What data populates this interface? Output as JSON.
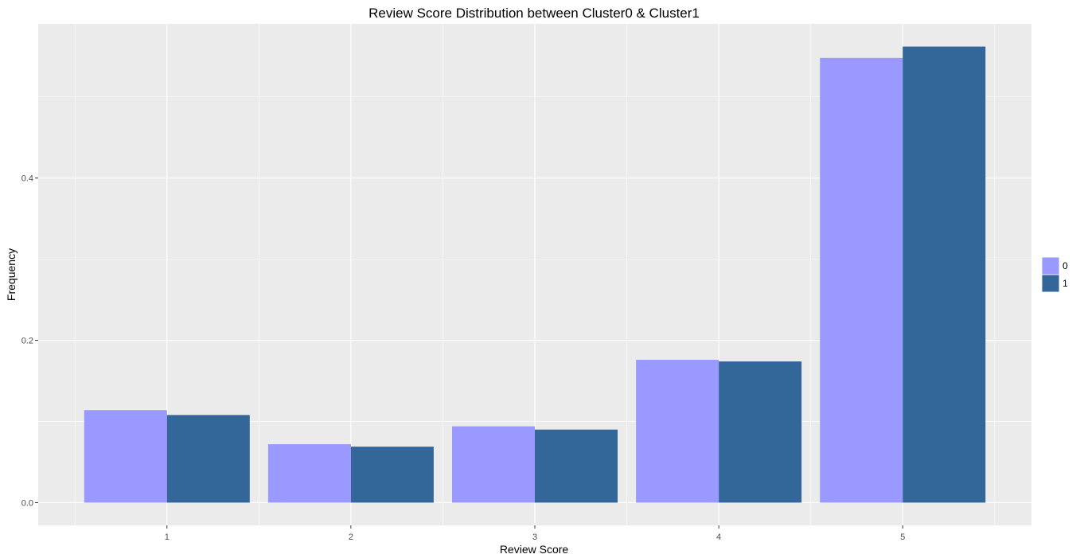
{
  "chart_data": {
    "type": "bar",
    "title": "Review Score Distribution between Cluster0 & Cluster1",
    "xlabel": "Review Score",
    "ylabel": "Frequency",
    "categories": [
      "1",
      "2",
      "3",
      "4",
      "5"
    ],
    "series": [
      {
        "name": "0",
        "color": "#9999ff",
        "values": [
          0.114,
          0.072,
          0.094,
          0.176,
          0.548
        ]
      },
      {
        "name": "1",
        "color": "#336699",
        "values": [
          0.108,
          0.069,
          0.09,
          0.174,
          0.562
        ]
      }
    ],
    "yticks": [
      0.0,
      0.2,
      0.4
    ],
    "ytick_labels": [
      "0.0",
      "0.2",
      "0.4"
    ],
    "ylim": [
      -0.028,
      0.59
    ],
    "grid": true,
    "legend_position": "right",
    "panel_color": "#ebebeb",
    "grid_color": "#ffffff"
  }
}
